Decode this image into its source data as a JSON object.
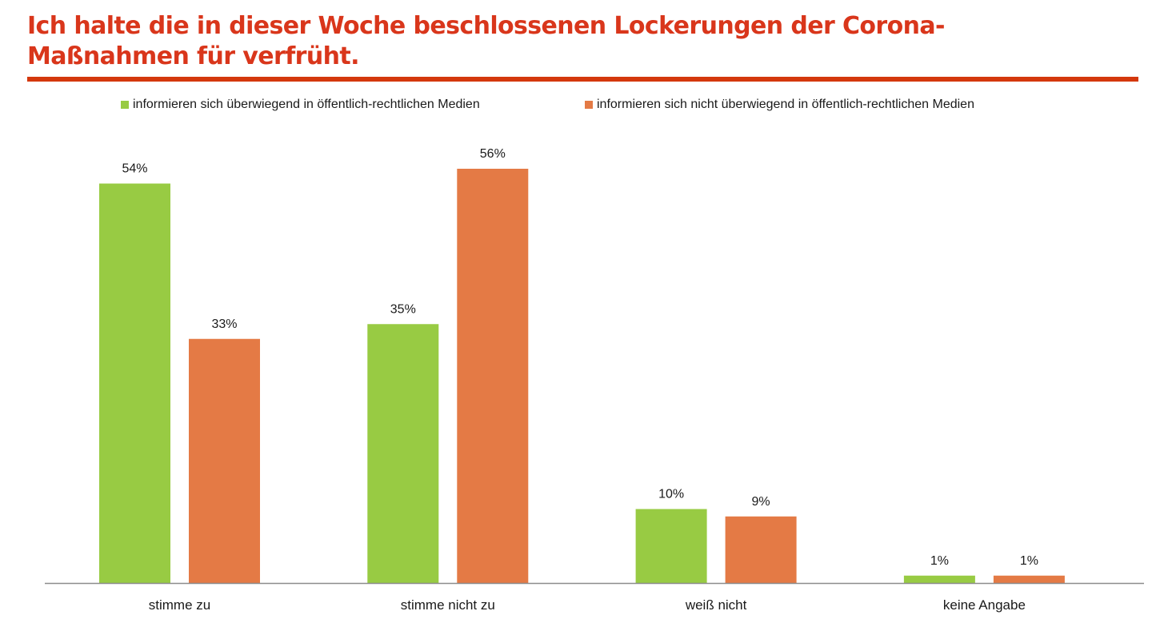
{
  "chart_data": {
    "type": "bar",
    "title": "Ich halte die in dieser Woche beschlossenen Lockerungen der Corona-Maßnahmen für verfrüht.",
    "title_lines": [
      "Ich halte die in dieser Woche beschlossenen Lockerungen der Corona-",
      "Maßnahmen für verfrüht."
    ],
    "categories": [
      "stimme zu",
      "stimme nicht zu",
      "weiß nicht",
      "keine Angabe"
    ],
    "series": [
      {
        "name": "informieren sich überwiegend in öffentlich-rechtlichen Medien",
        "color": "#98cb43",
        "values": [
          54,
          35,
          10,
          1
        ],
        "labels": [
          "54%",
          "35%",
          "10%",
          "1%"
        ]
      },
      {
        "name": "informieren sich nicht überwiegend in öffentlich-rechtlichen Medien",
        "color": "#e47a45",
        "values": [
          33,
          56,
          9,
          1
        ],
        "labels": [
          "33%",
          "56%",
          "9%",
          "1%"
        ]
      }
    ],
    "xlabel": "",
    "ylabel": "",
    "ylim": [
      0,
      60
    ],
    "unit": "%",
    "grid": false,
    "y_axis_visible": false,
    "legend_position": "top"
  },
  "colors": {
    "title": "#d9361b",
    "title_rule": "#d4380d",
    "axis": "#8c8c8c"
  }
}
